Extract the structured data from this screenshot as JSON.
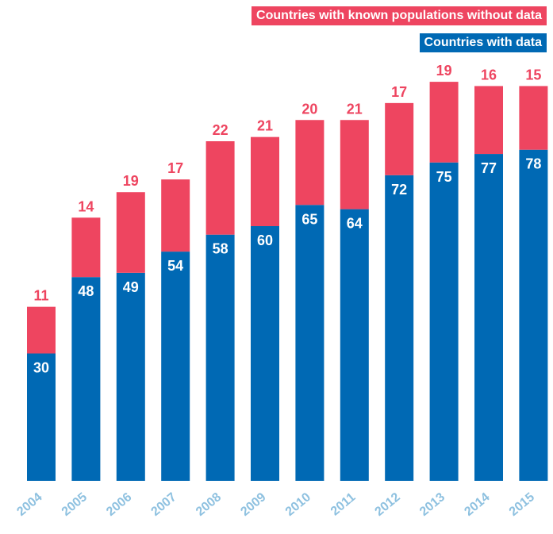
{
  "chart_data": {
    "type": "bar",
    "stacked": true,
    "categories": [
      "2004",
      "2005",
      "2006",
      "2007",
      "2008",
      "2009",
      "2010",
      "2011",
      "2012",
      "2013",
      "2014",
      "2015"
    ],
    "series": [
      {
        "name": "Countries with data",
        "color": "#0069b4",
        "label_color": "#ffffff",
        "values": [
          30,
          48,
          49,
          54,
          58,
          60,
          65,
          64,
          72,
          75,
          77,
          78
        ]
      },
      {
        "name": "Countries with known populations without data",
        "color": "#ee4560",
        "label_color": "#ee4560",
        "values": [
          11,
          14,
          19,
          17,
          22,
          21,
          20,
          21,
          17,
          19,
          16,
          15
        ]
      }
    ],
    "tick_color": "#8ec1e0",
    "legend_position": "top-right",
    "grid": false
  }
}
